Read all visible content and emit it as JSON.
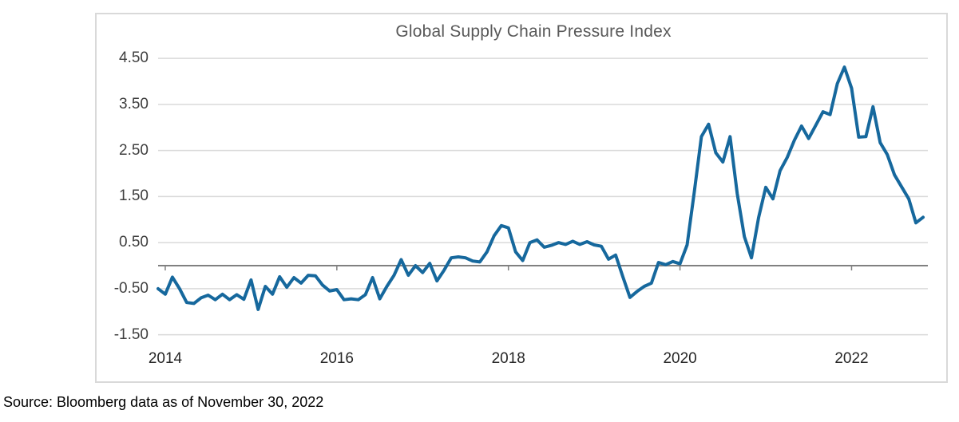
{
  "title": "Global Supply Chain Pressure Index",
  "source_note": "Source: Bloomberg data as of November 30, 2022",
  "colors": {
    "line": "#16689D",
    "gridline": "#D9D9D9",
    "zero_axis": "#808080",
    "tick_mark": "#808080",
    "frame_border": "#D9D9D9",
    "title_text": "#595959",
    "y_label_text": "#3F3F3F",
    "x_label_text": "#262626",
    "source_text": "#000000",
    "background": "#FFFFFF"
  },
  "chart_data": {
    "type": "line",
    "title": "Global Supply Chain Pressure Index",
    "xlabel": "",
    "ylabel": "",
    "grid": "horizontal",
    "legend": "none",
    "ylim": [
      -1.5,
      4.5
    ],
    "y_ticks": [
      4.5,
      3.5,
      2.5,
      1.5,
      0.5,
      -0.5,
      -1.5
    ],
    "y_tick_labels": [
      "4.50",
      "3.50",
      "2.50",
      "1.50",
      "0.50",
      "-0.50",
      "-1.50"
    ],
    "x_tick_labels": [
      "2014",
      "2016",
      "2018",
      "2020",
      "2022"
    ],
    "x_tick_month_index": [
      1,
      25,
      49,
      73,
      97
    ],
    "series": [
      {
        "name": "Global Supply Chain Pressure Index",
        "frequency": "monthly",
        "start": "2013-12",
        "end": "2022-11",
        "values": [
          -0.5,
          -0.62,
          -0.25,
          -0.5,
          -0.8,
          -0.82,
          -0.7,
          -0.64,
          -0.74,
          -0.62,
          -0.74,
          -0.63,
          -0.73,
          -0.31,
          -0.95,
          -0.45,
          -0.62,
          -0.24,
          -0.47,
          -0.26,
          -0.38,
          -0.21,
          -0.22,
          -0.42,
          -0.55,
          -0.52,
          -0.74,
          -0.72,
          -0.74,
          -0.63,
          -0.26,
          -0.72,
          -0.45,
          -0.21,
          0.13,
          -0.21,
          0.0,
          -0.15,
          0.05,
          -0.33,
          -0.1,
          0.17,
          0.19,
          0.17,
          0.1,
          0.08,
          0.3,
          0.65,
          0.87,
          0.82,
          0.3,
          0.11,
          0.5,
          0.56,
          0.4,
          0.44,
          0.5,
          0.46,
          0.53,
          0.46,
          0.52,
          0.45,
          0.42,
          0.14,
          0.23,
          -0.24,
          -0.69,
          -0.56,
          -0.45,
          -0.38,
          0.07,
          0.02,
          0.09,
          0.04,
          0.45,
          1.6,
          2.8,
          3.07,
          2.45,
          2.25,
          2.8,
          1.57,
          0.63,
          0.17,
          1.05,
          1.7,
          1.45,
          2.06,
          2.35,
          2.72,
          3.03,
          2.76,
          3.05,
          3.34,
          3.28,
          3.95,
          4.31,
          3.85,
          2.79,
          2.8,
          3.45,
          2.67,
          2.41,
          1.97,
          1.71,
          1.45,
          0.93,
          1.05
        ]
      }
    ]
  }
}
